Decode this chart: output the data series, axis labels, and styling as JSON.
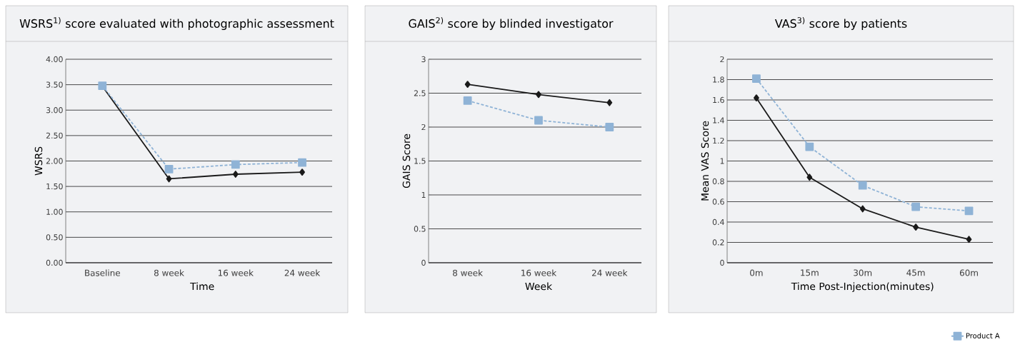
{
  "chart_data": [
    {
      "type": "line",
      "title": "WSRS$^{1)}$ score evaluated with photographic assessment",
      "xlabel": "Time",
      "ylabel": "WSRS",
      "categories": [
        "Baseline",
        "8 week",
        "16 week",
        "24 week"
      ],
      "series": [
        {
          "color": "#1a1a1a",
          "marker": "diamond",
          "line_style": "solid",
          "values": [
            3.47,
            1.65,
            1.74,
            1.78
          ]
        },
        {
          "color": "#8fb3d6",
          "marker": "square",
          "line_style": "dashed",
          "values": [
            3.48,
            1.84,
            1.93,
            1.97
          ]
        }
      ],
      "ylim": [
        0,
        4
      ],
      "yticks": [
        {
          "value": 0,
          "label": "0.00"
        },
        {
          "value": 0.5,
          "label": "0.50"
        },
        {
          "value": 1,
          "label": "1.00"
        },
        {
          "value": 1.5,
          "label": "1.50"
        },
        {
          "value": 2,
          "label": "2.00"
        },
        {
          "value": 2.5,
          "label": "2.50"
        },
        {
          "value": 3,
          "label": "3.00"
        },
        {
          "value": 3.5,
          "label": "3.50"
        },
        {
          "value": 4,
          "label": "4.00"
        }
      ],
      "grid": "y"
    },
    {
      "type": "line",
      "title": "GAIS$^{2)}$ score by blinded investigator",
      "xlabel": "Week",
      "ylabel": "GAIS Score",
      "categories": [
        "8 week",
        "16 week",
        "24 week"
      ],
      "series": [
        {
          "color": "#1a1a1a",
          "marker": "diamond",
          "line_style": "solid",
          "values": [
            2.63,
            2.48,
            2.36
          ]
        },
        {
          "color": "#8fb3d6",
          "marker": "square",
          "line_style": "dashed",
          "values": [
            2.39,
            2.1,
            2.0
          ]
        }
      ],
      "ylim": [
        0,
        3
      ],
      "yticks": [
        0,
        0.5,
        1,
        1.5,
        2,
        2.5,
        3
      ],
      "grid": "y"
    },
    {
      "type": "line",
      "title": "VAS$^{3)}$ score by patients",
      "xlabel": "Time Post-Injection(minutes)",
      "ylabel": "Mean VAS Score",
      "categories": [
        "0m",
        "15m",
        "30m",
        "45m",
        "60m"
      ],
      "series": [
        {
          "color": "#1a1a1a",
          "marker": "diamond",
          "line_style": "solid",
          "values": [
            1.62,
            0.84,
            0.53,
            0.35,
            0.23
          ]
        },
        {
          "name": "Product A",
          "color": "#8fb3d6",
          "marker": "square",
          "line_style": "dashed",
          "values": [
            1.81,
            1.14,
            0.76,
            0.55,
            0.51
          ]
        }
      ],
      "ylim": [
        0,
        2
      ],
      "yticks": [
        0,
        0.2,
        0.4,
        0.6,
        0.8,
        1,
        1.2,
        1.4,
        1.6,
        1.8,
        2
      ],
      "grid": "y",
      "legend": "bottom right"
    }
  ]
}
